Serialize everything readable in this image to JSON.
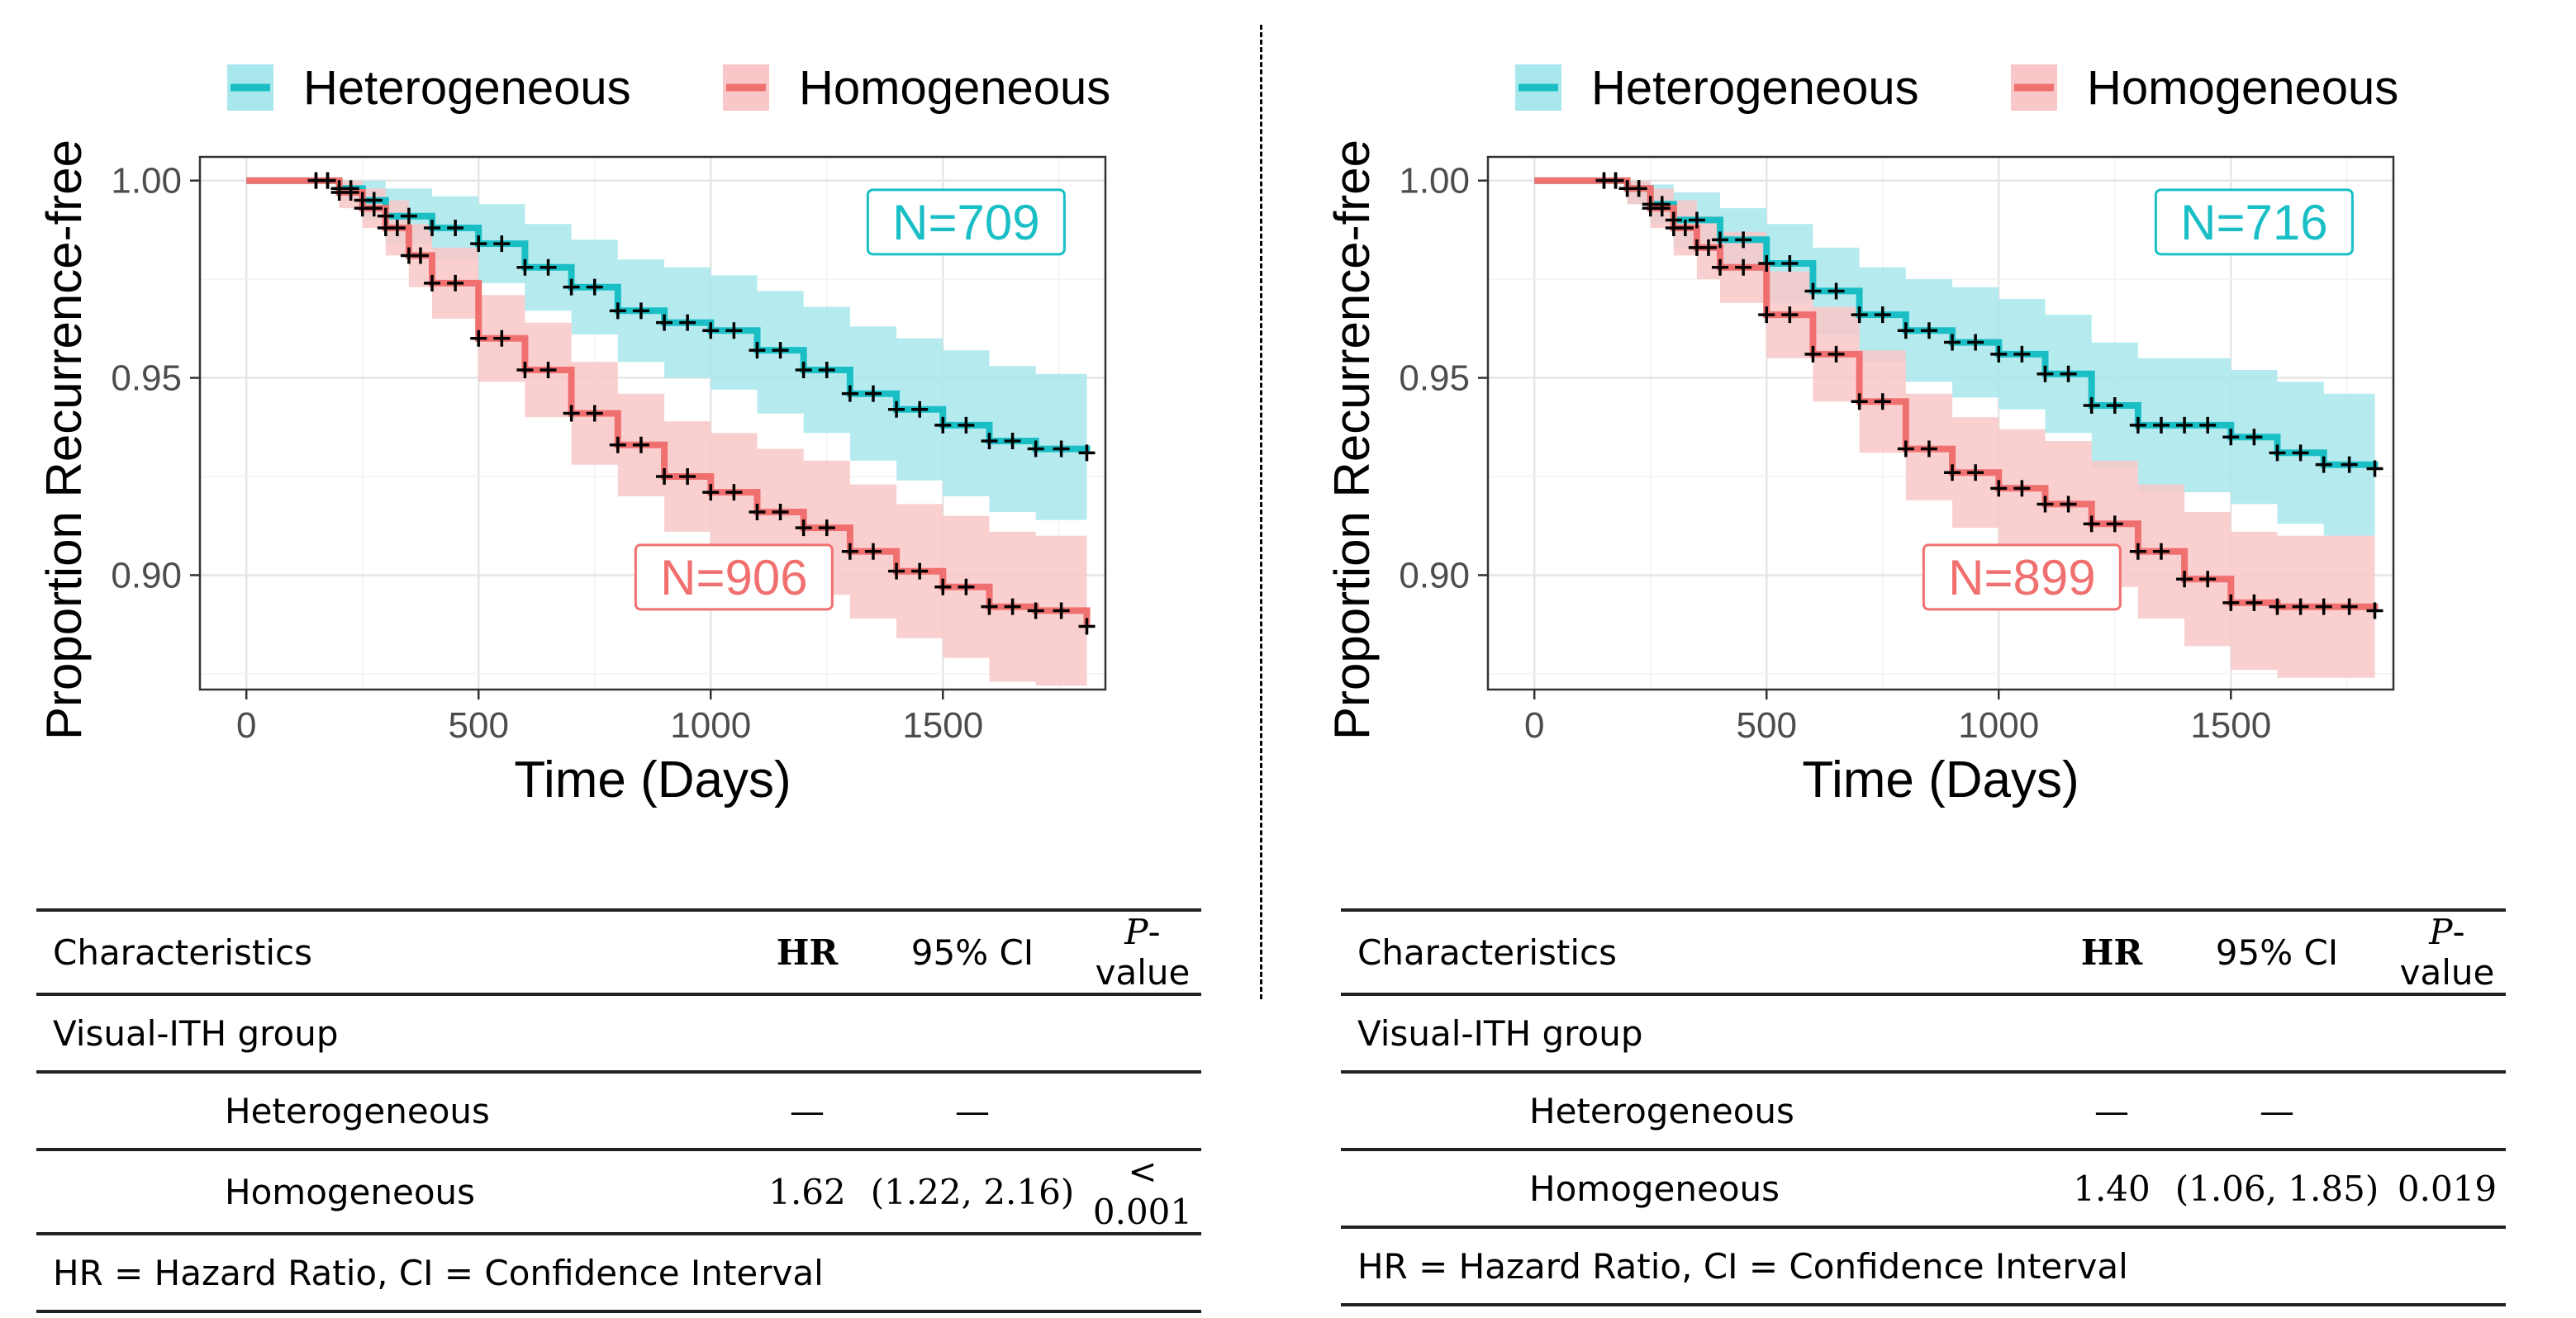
{
  "colors": {
    "heterogeneous": "#1ABFC6",
    "homogeneous": "#F07070",
    "het_band": "#A8E8EC",
    "hom_band": "#F9C7C7"
  },
  "legend": [
    "Heterogeneous",
    "Homogeneous"
  ],
  "chart_data": [
    {
      "type": "line",
      "xlabel": "Time (Days)",
      "ylabel": "Proportion Recurrence-free",
      "xlim": [
        -100,
        1850
      ],
      "ylim": [
        0.871,
        1.006
      ],
      "xticks": [
        0,
        500,
        1000,
        1500
      ],
      "yticks": [
        0.9,
        0.95,
        1.0
      ],
      "ytick_labels": [
        "0.90",
        "0.95",
        "1.00"
      ],
      "grid": true,
      "legend_position": "top",
      "annotations": [
        {
          "text": "N=709",
          "series": "Heterogeneous",
          "x": 1550,
          "y": 0.9895
        },
        {
          "text": "N=906",
          "series": "Homogeneous",
          "x": 1050,
          "y": 0.8995
        }
      ],
      "series": [
        {
          "name": "Heterogeneous",
          "x": [
            0,
            150,
            200,
            250,
            300,
            400,
            500,
            600,
            700,
            800,
            900,
            1000,
            1100,
            1200,
            1300,
            1400,
            1500,
            1600,
            1700,
            1810
          ],
          "y": [
            1.0,
            1.0,
            0.998,
            0.995,
            0.991,
            0.988,
            0.984,
            0.978,
            0.973,
            0.967,
            0.964,
            0.962,
            0.957,
            0.952,
            0.946,
            0.942,
            0.938,
            0.934,
            0.932,
            0.931
          ],
          "lower": [
            1.0,
            1.0,
            0.995,
            0.99,
            0.984,
            0.98,
            0.974,
            0.967,
            0.961,
            0.954,
            0.95,
            0.947,
            0.941,
            0.936,
            0.929,
            0.924,
            0.92,
            0.916,
            0.914,
            0.913
          ],
          "upper": [
            1.0,
            1.0,
            1.0,
            1.0,
            0.998,
            0.996,
            0.994,
            0.989,
            0.985,
            0.98,
            0.978,
            0.976,
            0.972,
            0.968,
            0.963,
            0.96,
            0.957,
            0.953,
            0.951,
            0.95
          ]
        },
        {
          "name": "Homogeneous",
          "x": [
            0,
            150,
            200,
            250,
            300,
            350,
            400,
            500,
            600,
            700,
            800,
            900,
            1000,
            1100,
            1200,
            1300,
            1400,
            1500,
            1600,
            1700,
            1810
          ],
          "y": [
            1.0,
            1.0,
            0.997,
            0.993,
            0.988,
            0.981,
            0.974,
            0.96,
            0.952,
            0.941,
            0.933,
            0.925,
            0.921,
            0.916,
            0.912,
            0.906,
            0.901,
            0.897,
            0.892,
            0.891,
            0.887
          ],
          "lower": [
            1.0,
            1.0,
            0.993,
            0.988,
            0.981,
            0.973,
            0.965,
            0.949,
            0.94,
            0.928,
            0.92,
            0.911,
            0.906,
            0.9,
            0.895,
            0.889,
            0.884,
            0.879,
            0.873,
            0.872,
            0.869
          ],
          "upper": [
            1.0,
            1.0,
            1.0,
            0.998,
            0.995,
            0.989,
            0.983,
            0.971,
            0.964,
            0.954,
            0.946,
            0.939,
            0.936,
            0.932,
            0.929,
            0.923,
            0.918,
            0.915,
            0.911,
            0.91,
            0.905
          ]
        }
      ]
    },
    {
      "type": "line",
      "xlabel": "Time (Days)",
      "ylabel": "Proportion Recurrence-free",
      "xlim": [
        -100,
        1850
      ],
      "ylim": [
        0.871,
        1.006
      ],
      "xticks": [
        0,
        500,
        1000,
        1500
      ],
      "yticks": [
        0.9,
        0.95,
        1.0
      ],
      "ytick_labels": [
        "0.90",
        "0.95",
        "1.00"
      ],
      "grid": true,
      "legend_position": "top",
      "annotations": [
        {
          "text": "N=716",
          "series": "Heterogeneous",
          "x": 1550,
          "y": 0.9895
        },
        {
          "text": "N=899",
          "series": "Homogeneous",
          "x": 1050,
          "y": 0.8995
        }
      ],
      "series": [
        {
          "name": "Heterogeneous",
          "x": [
            0,
            150,
            200,
            250,
            300,
            400,
            500,
            600,
            700,
            800,
            900,
            1000,
            1100,
            1200,
            1300,
            1400,
            1500,
            1600,
            1700,
            1810
          ],
          "y": [
            1.0,
            1.0,
            0.998,
            0.994,
            0.99,
            0.985,
            0.979,
            0.972,
            0.966,
            0.962,
            0.959,
            0.956,
            0.951,
            0.943,
            0.938,
            0.938,
            0.935,
            0.931,
            0.928,
            0.927
          ],
          "lower": [
            1.0,
            1.0,
            0.994,
            0.989,
            0.983,
            0.977,
            0.969,
            0.961,
            0.954,
            0.949,
            0.945,
            0.942,
            0.936,
            0.927,
            0.921,
            0.921,
            0.918,
            0.913,
            0.91,
            0.909
          ],
          "upper": [
            1.0,
            1.0,
            1.0,
            0.999,
            0.997,
            0.993,
            0.989,
            0.983,
            0.978,
            0.975,
            0.973,
            0.97,
            0.966,
            0.959,
            0.955,
            0.955,
            0.952,
            0.949,
            0.946,
            0.945
          ]
        },
        {
          "name": "Homogeneous",
          "x": [
            0,
            150,
            200,
            250,
            300,
            350,
            400,
            500,
            600,
            700,
            800,
            900,
            1000,
            1100,
            1200,
            1300,
            1400,
            1500,
            1600,
            1700,
            1810
          ],
          "y": [
            1.0,
            1.0,
            0.998,
            0.993,
            0.988,
            0.983,
            0.978,
            0.966,
            0.956,
            0.944,
            0.932,
            0.926,
            0.922,
            0.918,
            0.913,
            0.906,
            0.899,
            0.893,
            0.892,
            0.892,
            0.891
          ],
          "lower": [
            1.0,
            1.0,
            0.994,
            0.988,
            0.981,
            0.975,
            0.969,
            0.955,
            0.944,
            0.931,
            0.919,
            0.912,
            0.907,
            0.903,
            0.897,
            0.889,
            0.882,
            0.876,
            0.874,
            0.874,
            0.873
          ],
          "upper": [
            1.0,
            1.0,
            1.0,
            0.998,
            0.995,
            0.991,
            0.987,
            0.977,
            0.968,
            0.957,
            0.946,
            0.94,
            0.937,
            0.934,
            0.929,
            0.923,
            0.916,
            0.911,
            0.91,
            0.91,
            0.909
          ]
        }
      ]
    }
  ],
  "tables": [
    {
      "headers": {
        "characteristics": "Characteristics",
        "hr": "HR",
        "ci": "95% CI",
        "p": "P",
        "p_suffix": "-value"
      },
      "group": "Visual-ITH group",
      "rows": [
        {
          "label": "Heterogeneous",
          "hr": "—",
          "ci": "—",
          "p": ""
        },
        {
          "label": "Homogeneous",
          "hr": "1.62",
          "ci": "(1.22, 2.16)",
          "p": "< 0.001"
        }
      ],
      "footnote": "HR = Hazard Ratio, CI  = Confidence Interval"
    },
    {
      "headers": {
        "characteristics": "Characteristics",
        "hr": "HR",
        "ci": "95% CI",
        "p": "P",
        "p_suffix": "-value"
      },
      "group": "Visual-ITH group",
      "rows": [
        {
          "label": "Heterogeneous",
          "hr": "—",
          "ci": "—",
          "p": ""
        },
        {
          "label": "Homogeneous",
          "hr": "1.40",
          "ci": "(1.06, 1.85)",
          "p": "0.019"
        }
      ],
      "footnote": "HR = Hazard Ratio, CI  = Confidence Interval"
    }
  ]
}
